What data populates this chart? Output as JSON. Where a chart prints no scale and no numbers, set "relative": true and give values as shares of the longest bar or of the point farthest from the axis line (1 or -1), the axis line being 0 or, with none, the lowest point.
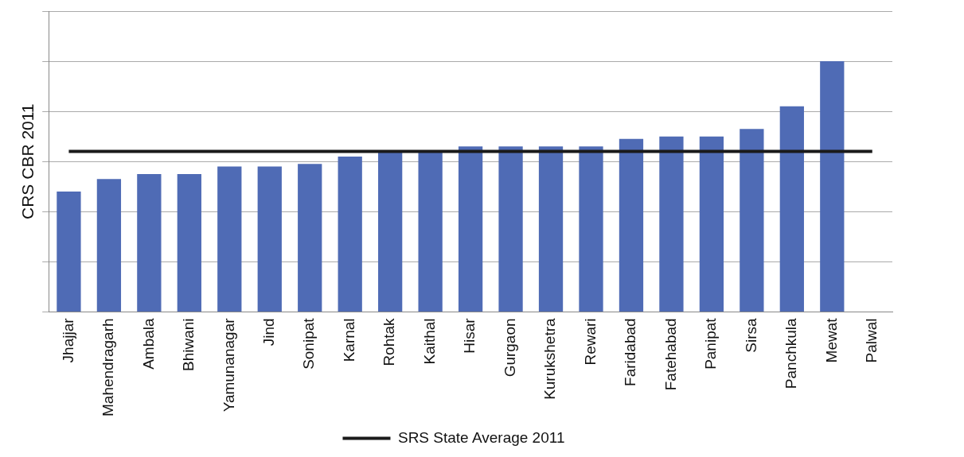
{
  "chart_data": {
    "type": "bar",
    "relative": true,
    "ylabel": "CRS CBR 2011",
    "grid": "y",
    "legend": "bottom",
    "categories": [
      "Jhajjar",
      "Mahendragarh",
      "Ambala",
      "Bhiwani",
      "Yamunanagar",
      "Jind",
      "Sonipat",
      "Karnal",
      "Rohtak",
      "Kaithal",
      "Hisar",
      "Gurgaon",
      "Kurukshetra",
      "Rewari",
      "Faridabad",
      "Fatehabad",
      "Panipat",
      "Sirsa",
      "Panchkula",
      "Mewat",
      "Palwal"
    ],
    "series": [
      {
        "color": "#4f6bb5",
        "values": [
          0.48,
          0.53,
          0.55,
          0.55,
          0.58,
          0.58,
          0.59,
          0.62,
          0.64,
          0.64,
          0.66,
          0.66,
          0.66,
          0.66,
          0.69,
          0.7,
          0.7,
          0.73,
          0.82,
          1,
          null
        ]
      },
      {
        "type": "line",
        "name": "SRS State Average 2011",
        "color": "#1a1a1a",
        "marker": "none",
        "line_style": "solid",
        "values": [
          0.64,
          0.64,
          0.64,
          0.64,
          0.64,
          0.64,
          0.64,
          0.64,
          0.64,
          0.64,
          0.64,
          0.64,
          0.64,
          0.64,
          0.64,
          0.64,
          0.64,
          0.64,
          0.64,
          0.64,
          0.64
        ]
      }
    ]
  }
}
